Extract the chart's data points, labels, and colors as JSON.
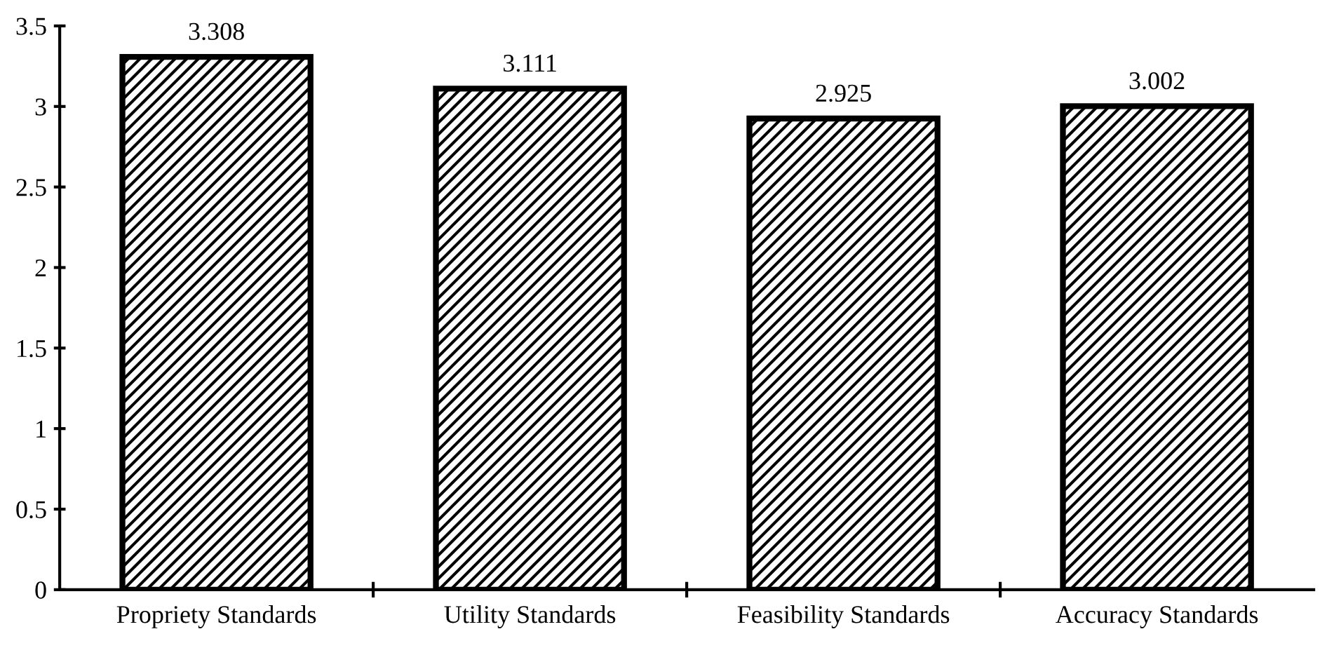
{
  "chart_data": {
    "type": "bar",
    "categories": [
      "Propriety Standards",
      "Utility Standards",
      "Feasibility Standards",
      "Accuracy Standards"
    ],
    "values": [
      3.308,
      3.111,
      2.925,
      3.002
    ],
    "color": "#000000",
    "ylim": [
      0,
      3.5
    ],
    "yticks": [
      0,
      0.5,
      1,
      1.5,
      2,
      2.5,
      3,
      3.5
    ],
    "data_labels": true,
    "grid": false,
    "legend": false
  }
}
